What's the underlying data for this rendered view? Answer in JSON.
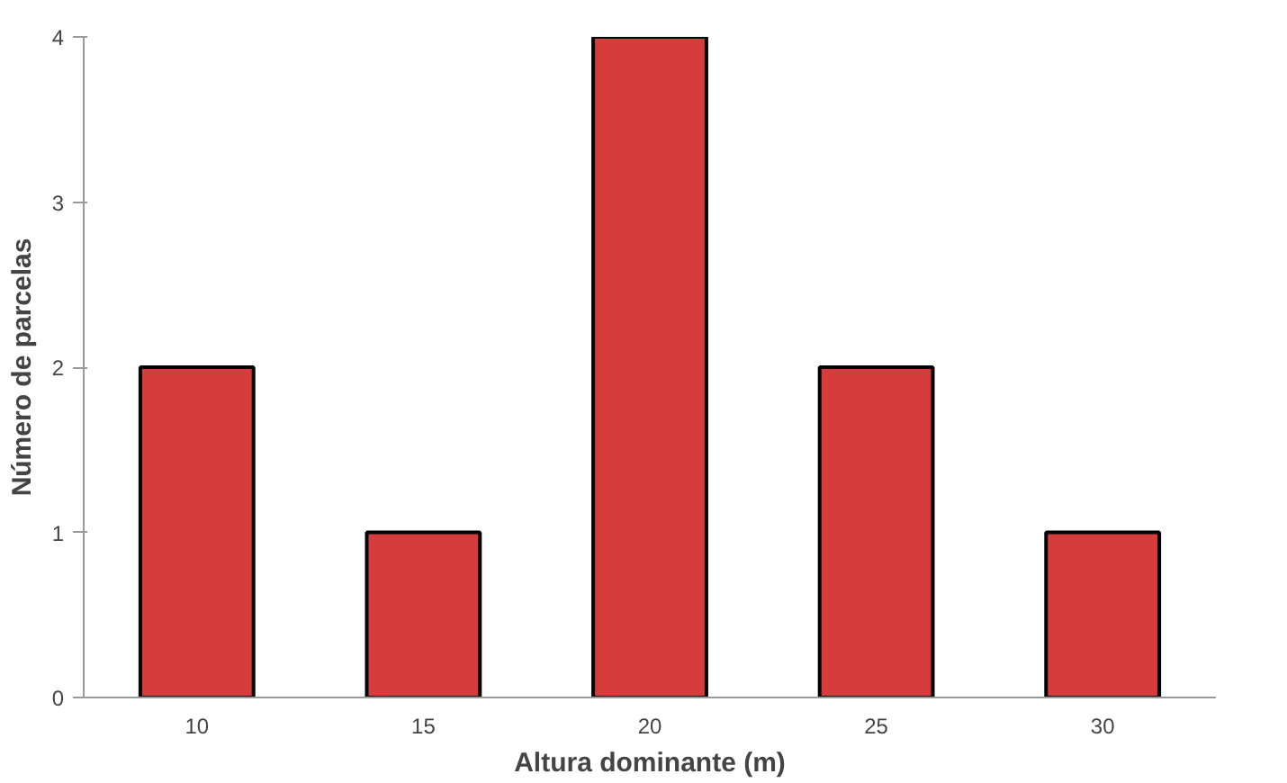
{
  "chart_data": {
    "type": "bar",
    "xlabel": "Altura dominante (m)",
    "ylabel": "Número de parcelas",
    "categories": [
      "10",
      "15",
      "20",
      "25",
      "30"
    ],
    "values": [
      2,
      1,
      4,
      2,
      1
    ],
    "color": "#d63c3c",
    "ylim": [
      0,
      4
    ],
    "yticks": [
      0,
      1,
      2,
      3,
      4
    ],
    "grid": false
  }
}
